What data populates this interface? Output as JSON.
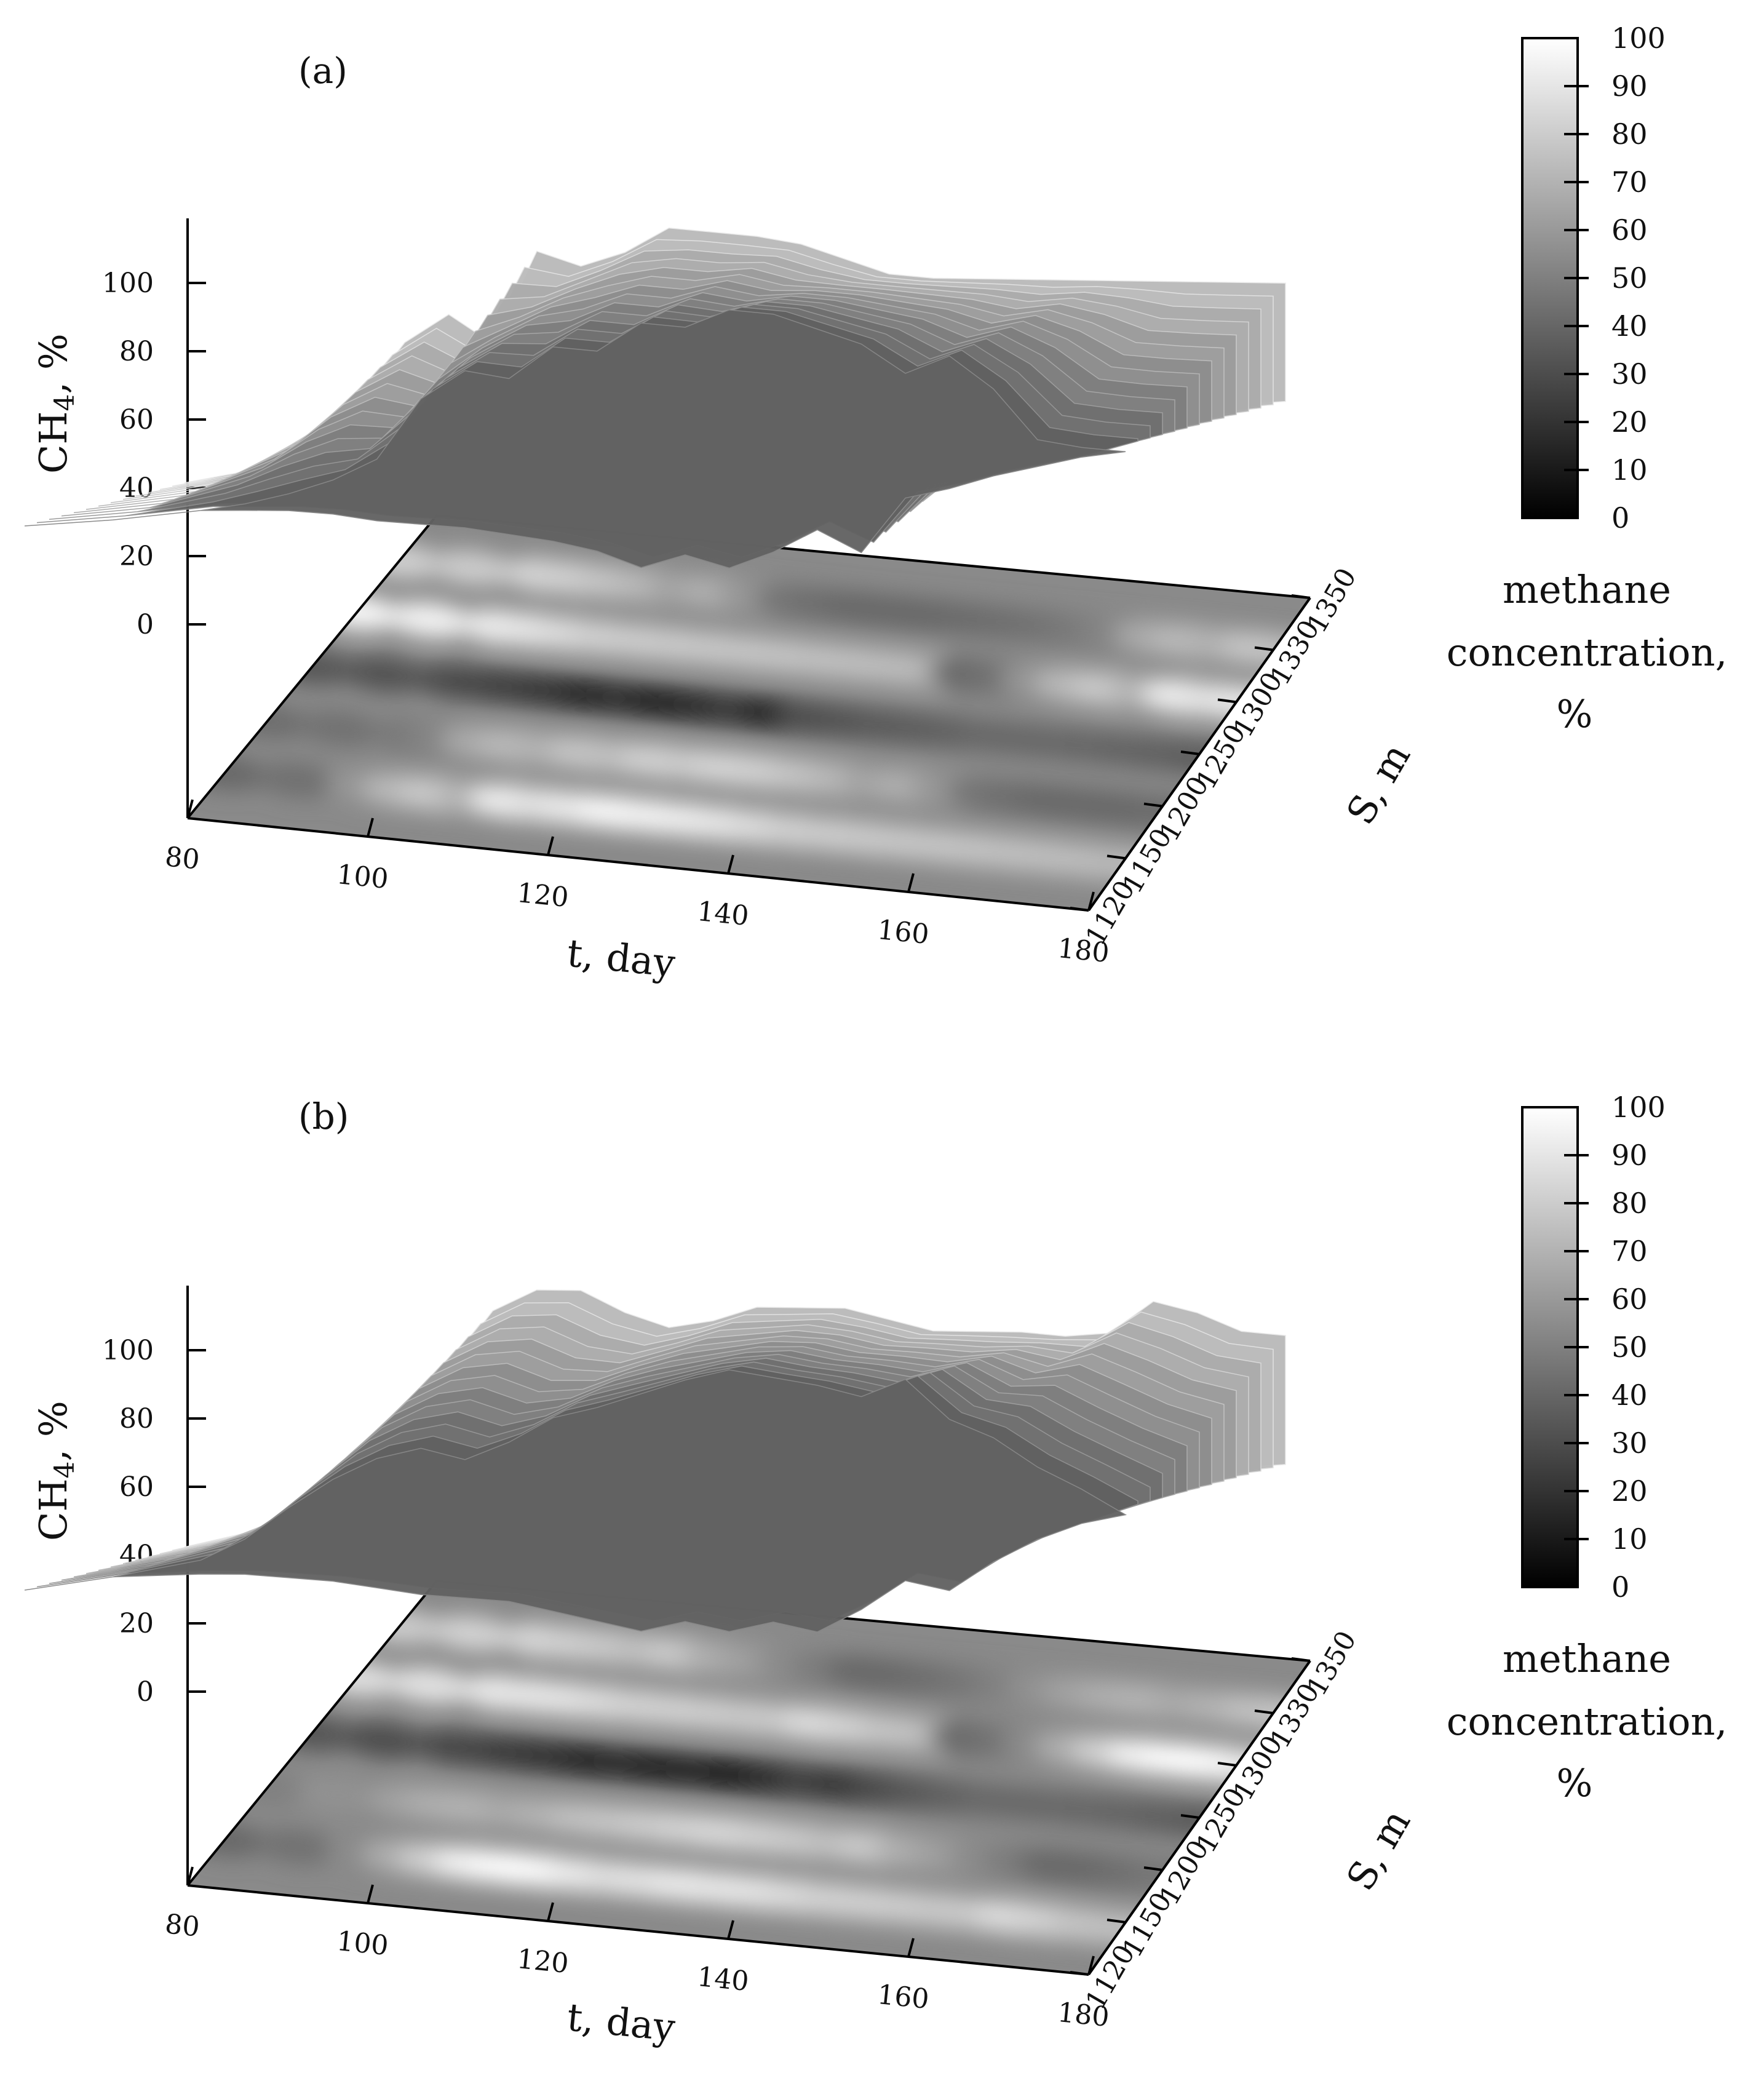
{
  "chart_data": [
    {
      "type": "surface3d",
      "panel_label": "(a)",
      "zlabel": "CH4, %",
      "xlabel": "t, day",
      "ylabel": "S, m",
      "z_ticks": [
        "100",
        "80",
        "60",
        "40",
        "20",
        "0"
      ],
      "x_ticks": [
        "80",
        "100",
        "120",
        "140",
        "160",
        "180"
      ],
      "y_ticks": [
        "1120",
        "1150",
        "1200",
        "1250",
        "1300",
        "1330",
        "1350"
      ],
      "zlim": [
        0,
        100
      ],
      "xlim": [
        80,
        180
      ],
      "ylim": [
        1120,
        1350
      ],
      "surface_profile": {
        "t": [
          80,
          88,
          96,
          100,
          104,
          108,
          112,
          116,
          120,
          124,
          128,
          132,
          136,
          140,
          144,
          148,
          152,
          156,
          160,
          164,
          168,
          172,
          176,
          180
        ],
        "back_ridge": [
          40,
          43,
          60,
          75,
          82,
          73,
          98,
          93,
          96,
          102,
          100,
          98,
          95,
          90,
          85,
          83,
          82,
          81,
          80,
          79,
          78,
          77,
          76,
          75
        ],
        "front_ridge": [
          40,
          40,
          41,
          42,
          44,
          47,
          52,
          68,
          75,
          72,
          80,
          78,
          85,
          83,
          87,
          85,
          80,
          75,
          66,
          70,
          60,
          45,
          42,
          40
        ],
        "dip_min": [
          40,
          40,
          39,
          38,
          37,
          35,
          32,
          30,
          28,
          25,
          22,
          18,
          12,
          15,
          10,
          14,
          20,
          12,
          28,
          30,
          33,
          35,
          37,
          40
        ]
      },
      "colorbar": {
        "ticks": [
          "100",
          "90",
          "80",
          "70",
          "60",
          "50",
          "40",
          "30",
          "20",
          "10",
          "0"
        ],
        "title_lines": [
          "methane",
          "concentration,",
          "%"
        ],
        "range": [
          0,
          100
        ]
      }
    },
    {
      "type": "surface3d",
      "panel_label": "(b)",
      "zlabel": "CH4, %",
      "xlabel": "t, day",
      "ylabel": "S, m",
      "z_ticks": [
        "100",
        "80",
        "60",
        "40",
        "20",
        "0"
      ],
      "x_ticks": [
        "80",
        "100",
        "120",
        "140",
        "160",
        "180"
      ],
      "y_ticks": [
        "1120",
        "1150",
        "1200",
        "1250",
        "1300",
        "1330",
        "1350"
      ],
      "zlim": [
        0,
        100
      ],
      "xlim": [
        80,
        180
      ],
      "ylim": [
        1120,
        1350
      ],
      "surface_profile": {
        "t": [
          80,
          88,
          96,
          100,
          104,
          108,
          112,
          116,
          120,
          124,
          128,
          132,
          136,
          140,
          144,
          148,
          152,
          156,
          160,
          164,
          168,
          172,
          176,
          180
        ],
        "back_ridge": [
          40,
          44,
          55,
          70,
          85,
          100,
          105,
          104,
          97,
          92,
          93,
          96,
          95,
          94,
          90,
          86,
          85,
          84,
          82,
          82,
          90,
          86,
          80,
          78
        ],
        "front_ridge": [
          40,
          42,
          45,
          50,
          58,
          65,
          70,
          72,
          68,
          72,
          78,
          80,
          83,
          86,
          88,
          85,
          82,
          78,
          82,
          70,
          64,
          55,
          48,
          40
        ],
        "dip_min": [
          40,
          40,
          39,
          38,
          36,
          34,
          31,
          28,
          26,
          24,
          20,
          16,
          12,
          14,
          10,
          12,
          8,
          14,
          22,
          18,
          26,
          32,
          36,
          40
        ]
      },
      "colorbar": {
        "ticks": [
          "100",
          "90",
          "80",
          "70",
          "60",
          "50",
          "40",
          "30",
          "20",
          "10",
          "0"
        ],
        "title_lines": [
          "methane",
          "concentration,",
          "%"
        ],
        "range": [
          0,
          100
        ]
      }
    }
  ]
}
